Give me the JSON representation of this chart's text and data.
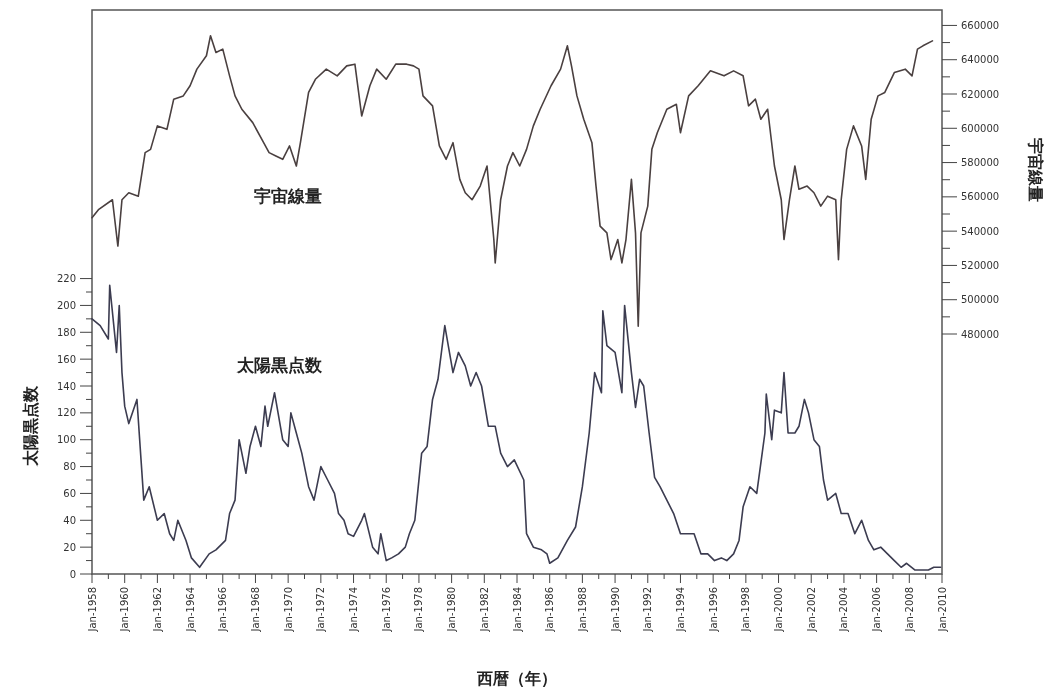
{
  "chart_data": {
    "type": "line",
    "xlabel": "西暦（年）",
    "ylabel": "太陽黒点数",
    "y2label": "宇宙線量",
    "xlim": [
      "1958-01",
      "2010-01"
    ],
    "xticks": [
      {
        "value": "1958-01",
        "label": "Jan-1958"
      },
      {
        "value": "1959-01",
        "label": null
      },
      {
        "value": "1960-01",
        "label": "Jan-1960"
      },
      {
        "value": "1961-01",
        "label": null
      },
      {
        "value": "1962-01",
        "label": "Jan-1962"
      },
      {
        "value": "1963-01",
        "label": null
      },
      {
        "value": "1964-01",
        "label": "Jan-1964"
      },
      {
        "value": "1965-01",
        "label": null
      },
      {
        "value": "1966-01",
        "label": "Jan-1966"
      },
      {
        "value": "1967-01",
        "label": null
      },
      {
        "value": "1968-01",
        "label": "Jan-1968"
      },
      {
        "value": "1969-01",
        "label": null
      },
      {
        "value": "1970-01",
        "label": "Jan-1970"
      },
      {
        "value": "1971-01",
        "label": null
      },
      {
        "value": "1972-01",
        "label": "Jan-1972"
      },
      {
        "value": "1973-01",
        "label": null
      },
      {
        "value": "1974-01",
        "label": "Jan-1974"
      },
      {
        "value": "1975-01",
        "label": null
      },
      {
        "value": "1976-01",
        "label": "Jan-1976"
      },
      {
        "value": "1977-01",
        "label": null
      },
      {
        "value": "1978-01",
        "label": "Jan-1978"
      },
      {
        "value": "1979-01",
        "label": null
      },
      {
        "value": "1980-01",
        "label": "Jan-1980"
      },
      {
        "value": "1981-01",
        "label": null
      },
      {
        "value": "1982-01",
        "label": "Jan-1982"
      },
      {
        "value": "1983-01",
        "label": null
      },
      {
        "value": "1984-01",
        "label": "Jan-1984"
      },
      {
        "value": "1985-01",
        "label": null
      },
      {
        "value": "1986-01",
        "label": "Jan-1986"
      },
      {
        "value": "1987-01",
        "label": null
      },
      {
        "value": "1988-01",
        "label": "Jan-1988"
      },
      {
        "value": "1989-01",
        "label": null
      },
      {
        "value": "1990-01",
        "label": "Jan-1990"
      },
      {
        "value": "1991-01",
        "label": null
      },
      {
        "value": "1992-01",
        "label": "Jan-1992"
      },
      {
        "value": "1993-01",
        "label": null
      },
      {
        "value": "1994-01",
        "label": "Jan-1994"
      },
      {
        "value": "1995-01",
        "label": null
      },
      {
        "value": "1996-01",
        "label": "Jan-1996"
      },
      {
        "value": "1997-01",
        "label": null
      },
      {
        "value": "1998-01",
        "label": "Jan-1998"
      },
      {
        "value": "1999-01",
        "label": null
      },
      {
        "value": "2000-01",
        "label": "Jan-2000"
      },
      {
        "value": "2001-01",
        "label": null
      },
      {
        "value": "2002-01",
        "label": "Jan-2002"
      },
      {
        "value": "2003-01",
        "label": null
      },
      {
        "value": "2004-01",
        "label": "Jan-2004"
      },
      {
        "value": "2005-01",
        "label": null
      },
      {
        "value": "2006-01",
        "label": "Jan-2006"
      },
      {
        "value": "2007-01",
        "label": null
      },
      {
        "value": "2008-01",
        "label": "Jan-2008"
      },
      {
        "value": "2009-01",
        "label": null
      },
      {
        "value": "2010-01",
        "label": "Jan-2010"
      }
    ],
    "ylim": [
      0,
      420
    ],
    "yticks": [
      0,
      {
        "value": 10,
        "label": null
      },
      20,
      {
        "value": 30,
        "label": null
      },
      40,
      {
        "value": 50,
        "label": null
      },
      60,
      {
        "value": 70,
        "label": null
      },
      80,
      {
        "value": 90,
        "label": null
      },
      100,
      {
        "value": 110,
        "label": null
      },
      120,
      {
        "value": 130,
        "label": null
      },
      140,
      {
        "value": 150,
        "label": null
      },
      160,
      {
        "value": 170,
        "label": null
      },
      180,
      {
        "value": 190,
        "label": null
      },
      200,
      {
        "value": 210,
        "label": null
      },
      220
    ],
    "y2lim": [
      340000,
      669000
    ],
    "y2ticks": [
      480000,
      {
        "value": 490000,
        "label": null
      },
      500000,
      {
        "value": 510000,
        "label": null
      },
      520000,
      {
        "value": 530000,
        "label": null
      },
      540000,
      {
        "value": 550000,
        "label": null
      },
      560000,
      {
        "value": 570000,
        "label": null
      },
      580000,
      {
        "value": 590000,
        "label": null
      },
      600000,
      {
        "value": 610000,
        "label": null
      },
      620000,
      {
        "value": 630000,
        "label": null
      },
      640000,
      {
        "value": 650000,
        "label": null
      },
      660000
    ],
    "series": [
      {
        "name": "宇宙線量",
        "axis": "y2",
        "color": "#4a4040",
        "x": [
          "1958-01",
          "1958-06",
          "1959-04",
          "1959-08",
          "1959-11",
          "1960-04",
          "1960-11",
          "1961-04",
          "1961-08",
          "1962-01",
          "1962-08",
          "1963-01",
          "1963-08",
          "1964-01",
          "1964-06",
          "1965-01",
          "1965-04",
          "1965-08",
          "1966-01",
          "1966-06",
          "1966-10",
          "1967-03",
          "1967-11",
          "1968-07",
          "1968-11",
          "1969-04",
          "1969-09",
          "1970-02",
          "1970-07",
          "1970-10",
          "1971-04",
          "1971-09",
          "1972-05",
          "1973-01",
          "1973-08",
          "1974-02",
          "1974-07",
          "1975-01",
          "1975-06",
          "1976-01",
          "1976-08",
          "1977-04",
          "1977-09",
          "1978-01",
          "1978-04",
          "1978-11",
          "1979-04",
          "1979-09",
          "1980-02",
          "1980-07",
          "1980-11",
          "1981-04",
          "1981-10",
          "1982-03",
          "1982-08",
          "1982-09",
          "1983-01",
          "1983-06",
          "1983-10",
          "1984-03",
          "1984-08",
          "1985-01",
          "1985-06",
          "1986-02",
          "1986-09",
          "1987-02",
          "1987-05",
          "1987-09",
          "1988-02",
          "1988-08",
          "1988-11",
          "1989-02",
          "1989-07",
          "1989-10",
          "1990-03",
          "1990-06",
          "1990-09",
          "1991-01",
          "1991-04",
          "1991-06",
          "1991-08",
          "1992-01",
          "1992-04",
          "1992-08",
          "1993-03",
          "1993-10",
          "1994-01",
          "1994-07",
          "1995-02",
          "1995-11",
          "1996-09",
          "1997-04",
          "1997-11",
          "1998-03",
          "1998-08",
          "1998-12",
          "1999-05",
          "1999-10",
          "2000-03",
          "2000-05",
          "2000-09",
          "2001-01",
          "2001-04",
          "2001-10",
          "2002-03",
          "2002-08",
          "2003-01",
          "2003-07",
          "2003-09",
          "2003-11",
          "2004-03",
          "2004-08",
          "2005-02",
          "2005-05",
          "2005-09",
          "2006-02",
          "2006-07",
          "2007-02",
          "2007-10",
          "2008-03",
          "2008-07",
          "2008-11",
          "2009-06"
        ],
        "values": [
          547800,
          552700,
          558300,
          531300,
          558300,
          562400,
          560400,
          585800,
          587700,
          601400,
          599400,
          617000,
          618900,
          624800,
          634500,
          642300,
          654000,
          644200,
          646200,
          630600,
          618900,
          611100,
          603300,
          591600,
          585800,
          583800,
          581900,
          589700,
          578000,
          591600,
          620900,
          628600,
          634500,
          630600,
          636400,
          637400,
          607200,
          624800,
          634500,
          628600,
          637400,
          637400,
          636400,
          634500,
          618900,
          613100,
          589700,
          581900,
          591600,
          570200,
          562400,
          558300,
          566300,
          578000,
          535100,
          521500,
          558300,
          578000,
          585800,
          578000,
          587700,
          601400,
          611100,
          624800,
          634500,
          648100,
          636400,
          618900,
          605300,
          591600,
          566300,
          542900,
          539000,
          523400,
          535100,
          521500,
          535100,
          570200,
          539000,
          484500,
          539000,
          554600,
          587700,
          597400,
          611100,
          614000,
          597400,
          618900,
          624800,
          633500,
          630600,
          633500,
          630600,
          613100,
          617000,
          605300,
          611100,
          578000,
          558300,
          535100,
          558300,
          578000,
          564400,
          566300,
          562400,
          554600,
          560400,
          558300,
          523400,
          558300,
          587700,
          601400,
          589700,
          570200,
          605300,
          618900,
          620900,
          632500,
          634500,
          630600,
          646200,
          648100,
          651000
        ]
      },
      {
        "name": "太陽黒点数",
        "color": "#3c3c50",
        "x": [
          "1958-01",
          "1958-07",
          "1959-01",
          "1959-02",
          "1959-07",
          "1959-09",
          "1959-11",
          "1960-01",
          "1960-04",
          "1960-10",
          "1961-01",
          "1961-03",
          "1961-07",
          "1962-01",
          "1962-06",
          "1962-10",
          "1963-01",
          "1963-04",
          "1963-10",
          "1964-02",
          "1964-08",
          "1965-03",
          "1965-08",
          "1966-03",
          "1966-06",
          "1966-10",
          "1967-01",
          "1967-06",
          "1967-09",
          "1968-01",
          "1968-05",
          "1968-08",
          "1968-10",
          "1969-03",
          "1969-09",
          "1970-01",
          "1970-03",
          "1970-07",
          "1970-11",
          "1971-04",
          "1971-08",
          "1972-01",
          "1972-06",
          "1972-11",
          "1973-02",
          "1973-06",
          "1973-09",
          "1974-01",
          "1974-07",
          "1974-09",
          "1975-03",
          "1975-07",
          "1975-09",
          "1976-01",
          "1976-05",
          "1976-10",
          "1977-03",
          "1977-06",
          "1977-10",
          "1978-03",
          "1978-07",
          "1978-11",
          "1979-03",
          "1979-08",
          "1980-02",
          "1980-06",
          "1980-11",
          "1981-03",
          "1981-07",
          "1981-11",
          "1982-04",
          "1982-09",
          "1983-01",
          "1983-06",
          "1983-11",
          "1984-06",
          "1984-08",
          "1985-01",
          "1985-07",
          "1985-11",
          "1986-01",
          "1986-07",
          "1987-02",
          "1987-08",
          "1988-01",
          "1988-06",
          "1988-10",
          "1989-03",
          "1989-04",
          "1989-07",
          "1990-01",
          "1990-06",
          "1990-08",
          "1991-01",
          "1991-04",
          "1991-07",
          "1991-10",
          "1992-02",
          "1992-06",
          "1992-10",
          "1993-03",
          "1993-08",
          "1994-01",
          "1994-07",
          "1994-11",
          "1995-04",
          "1995-09",
          "1996-02",
          "1996-07",
          "1996-11",
          "1997-04",
          "1997-08",
          "1997-11",
          "1998-04",
          "1998-09",
          "1999-03",
          "1999-04",
          "1999-08",
          "1999-10",
          "2000-03",
          "2000-05",
          "2000-08",
          "2001-01",
          "2001-04",
          "2001-08",
          "2001-11",
          "2002-03",
          "2002-07",
          "2002-10",
          "2003-01",
          "2003-07",
          "2003-11",
          "2004-04",
          "2004-09",
          "2005-02",
          "2005-07",
          "2005-11",
          "2006-04",
          "2006-09",
          "2007-02",
          "2007-07",
          "2007-11",
          "2008-05",
          "2008-10",
          "2009-03",
          "2009-07",
          "2009-12"
        ],
        "values": [
          190,
          185,
          175,
          215,
          165,
          200,
          150,
          125,
          112,
          130,
          85,
          55,
          65,
          40,
          45,
          30,
          25,
          40,
          25,
          12,
          5,
          15,
          18,
          25,
          45,
          55,
          100,
          75,
          95,
          110,
          95,
          125,
          110,
          135,
          100,
          95,
          120,
          105,
          90,
          65,
          55,
          80,
          70,
          60,
          45,
          40,
          30,
          28,
          40,
          45,
          20,
          15,
          30,
          10,
          12,
          15,
          20,
          30,
          40,
          90,
          95,
          130,
          145,
          185,
          150,
          165,
          155,
          140,
          150,
          140,
          110,
          110,
          90,
          80,
          85,
          70,
          30,
          20,
          18,
          15,
          8,
          12,
          25,
          35,
          65,
          105,
          150,
          135,
          196,
          170,
          165,
          135,
          200,
          150,
          124,
          145,
          140,
          105,
          72,
          65,
          55,
          45,
          30,
          30,
          30,
          15,
          15,
          10,
          12,
          10,
          15,
          25,
          50,
          65,
          60,
          105,
          134,
          100,
          122,
          120,
          150,
          105,
          105,
          110,
          130,
          120,
          100,
          95,
          70,
          55,
          60,
          45,
          45,
          30,
          40,
          25,
          18,
          20,
          15,
          10,
          5,
          8,
          3,
          3,
          3,
          5,
          5
        ]
      }
    ]
  }
}
